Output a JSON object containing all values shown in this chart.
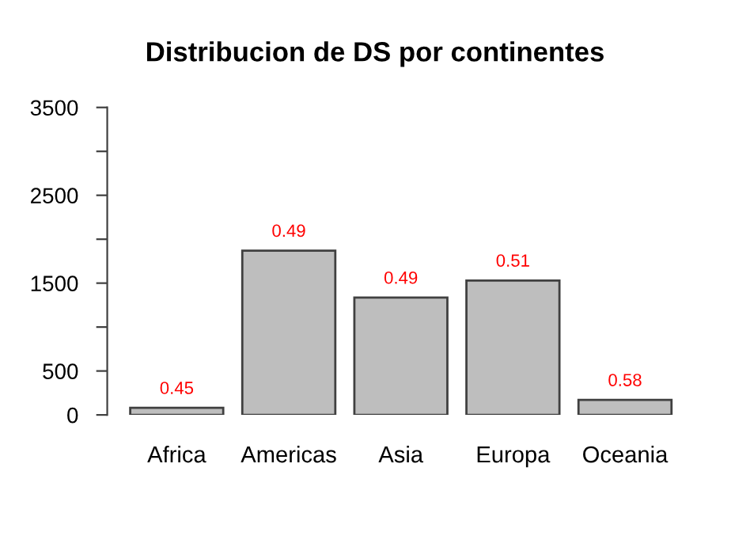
{
  "chart_data": {
    "type": "bar",
    "title": "Distribucion de DS por continentes",
    "categories": [
      "Africa",
      "Americas",
      "Asia",
      "Europa",
      "Oceania"
    ],
    "values": [
      80,
      1870,
      1335,
      1530,
      170
    ],
    "color": "#bebebe",
    "ylim": [
      0,
      3500
    ],
    "yticks": [
      0,
      500,
      {
        "value": 1000,
        "label": null
      },
      1500,
      {
        "value": 2000,
        "label": null
      },
      2500,
      {
        "value": 3000,
        "label": null
      },
      3500
    ],
    "annotations": [
      {
        "text": "0.45",
        "x": "Africa",
        "y": 80
      },
      {
        "text": "0.49",
        "x": "Americas",
        "y": 1870
      },
      {
        "text": "0.49",
        "x": "Asia",
        "y": 1335
      },
      {
        "text": "0.51",
        "x": "Europa",
        "y": 1530
      },
      {
        "text": "0.58",
        "x": "Oceania",
        "y": 170
      }
    ],
    "grid": false,
    "legend": false
  }
}
